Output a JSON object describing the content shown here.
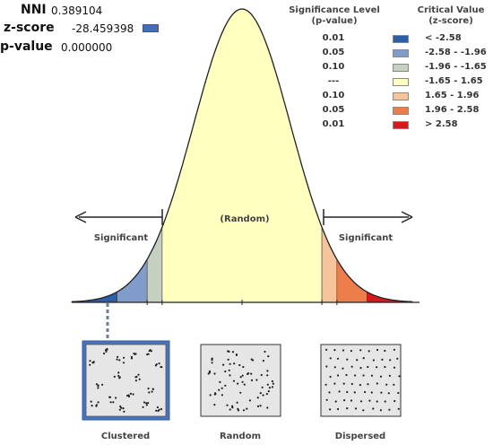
{
  "stats": {
    "nni_label": "NNI",
    "nni_value": "0.389104",
    "z_label": "z-score",
    "z_value": "-28.459398",
    "z_marker_color": "#3f6fb5",
    "p_label": "p-value",
    "p_value": "0.000000"
  },
  "legend": {
    "significance_title_line1": "Significance Level",
    "significance_title_line2": "(p-value)",
    "critical_title_line1": "Critical Value",
    "critical_title_line2": "(z-score)",
    "rows": [
      {
        "p": "0.01",
        "z": "< -2.58",
        "color": "#2e5ea8"
      },
      {
        "p": "0.05",
        "z": "-2.58 - -1.96",
        "color": "#7f9ccb"
      },
      {
        "p": "0.10",
        "z": "-1.96 - -1.65",
        "color": "#c5d0c1"
      },
      {
        "p": "---",
        "z": "-1.65 - 1.65",
        "color": "#ffffc0"
      },
      {
        "p": "0.10",
        "z": "1.65 - 1.96",
        "color": "#f6c49a"
      },
      {
        "p": "0.05",
        "z": "1.96 - 2.58",
        "color": "#ee7d4c"
      },
      {
        "p": "0.01",
        "z": "> 2.58",
        "color": "#d7191c"
      }
    ]
  },
  "curve": {
    "center_label": "(Random)",
    "left_label": "Significant",
    "right_label": "Significant"
  },
  "patterns": [
    {
      "label": "Clustered",
      "selected": true
    },
    {
      "label": "Random",
      "selected": false
    },
    {
      "label": "Dispersed",
      "selected": false
    }
  ],
  "selection_color": "#4a72b8"
}
